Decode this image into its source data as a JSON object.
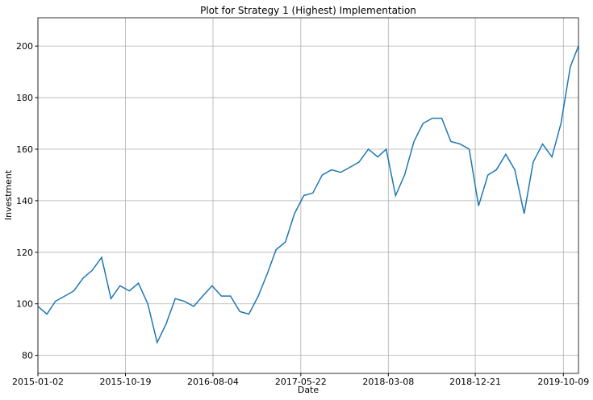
{
  "chart_data": {
    "type": "line",
    "title": "Plot for Strategy 1 (Highest) Implementation",
    "xlabel": "Date",
    "ylabel": "Investment",
    "x": [
      "2015-01-02",
      "2015-02-01",
      "2015-03-01",
      "2015-04-01",
      "2015-05-01",
      "2015-06-01",
      "2015-07-01",
      "2015-08-01",
      "2015-09-01",
      "2015-10-01",
      "2015-11-01",
      "2015-12-01",
      "2016-01-01",
      "2016-02-01",
      "2016-03-01",
      "2016-04-01",
      "2016-05-01",
      "2016-06-01",
      "2016-07-01",
      "2016-08-01",
      "2016-09-01",
      "2016-10-01",
      "2016-11-01",
      "2016-12-01",
      "2017-01-01",
      "2017-02-01",
      "2017-03-01",
      "2017-04-01",
      "2017-05-01",
      "2017-06-01",
      "2017-07-01",
      "2017-08-01",
      "2017-09-01",
      "2017-10-01",
      "2017-11-01",
      "2017-12-01",
      "2018-01-01",
      "2018-02-01",
      "2018-03-01",
      "2018-04-01",
      "2018-05-01",
      "2018-06-01",
      "2018-07-01",
      "2018-08-01",
      "2018-09-01",
      "2018-10-01",
      "2018-11-01",
      "2018-12-01",
      "2019-01-01",
      "2019-02-01",
      "2019-03-01",
      "2019-04-01",
      "2019-05-01",
      "2019-06-01",
      "2019-07-01",
      "2019-08-01",
      "2019-09-01",
      "2019-10-01",
      "2019-11-01",
      "2019-11-28"
    ],
    "series": [
      {
        "name": "Investment",
        "color": "#1f77b4",
        "values": [
          99,
          96,
          101,
          103,
          105,
          110,
          113,
          118,
          102,
          107,
          105,
          108,
          100,
          85,
          92,
          102,
          101,
          99,
          103,
          107,
          103,
          103,
          97,
          96,
          103,
          112,
          121,
          124,
          135,
          142,
          143,
          150,
          152,
          151,
          153,
          155,
          160,
          157,
          160,
          142,
          150,
          163,
          170,
          172,
          172,
          163,
          162,
          160,
          138,
          150,
          152,
          158,
          152,
          135,
          155,
          162,
          157,
          170,
          192,
          200
        ]
      }
    ],
    "xlim": [
      "2015-01-02",
      "2019-11-28"
    ],
    "xticks": [
      "2015-01-02",
      "2015-10-19",
      "2016-08-04",
      "2017-05-22",
      "2018-03-08",
      "2018-12-21",
      "2019-10-09"
    ],
    "ylim": [
      73,
      211
    ],
    "yticks": [
      80,
      100,
      120,
      140,
      160,
      180,
      200
    ],
    "grid": true
  }
}
